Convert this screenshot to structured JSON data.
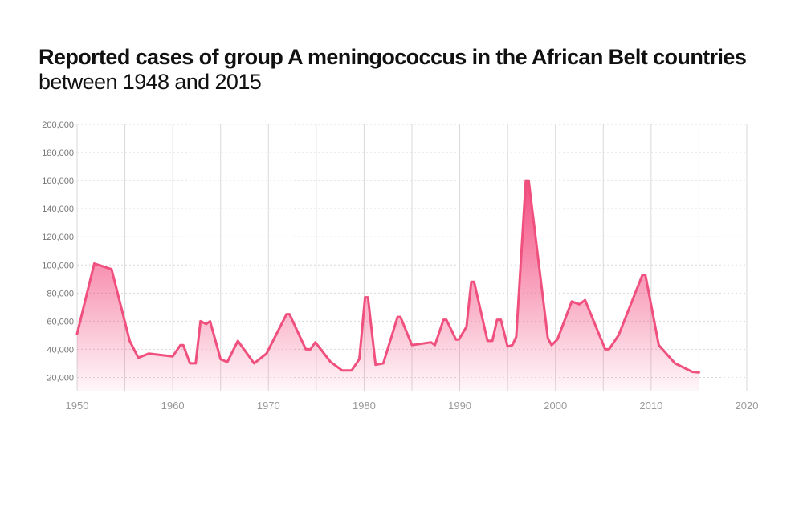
{
  "title": "Reported cases of group A meningococcus in the African Belt countries",
  "subtitle": "between 1948 and 2015",
  "chart_data": {
    "type": "area",
    "title": "Reported cases of group A meningococcus in the African Belt countries",
    "subtitle": "between 1948 and 2015",
    "xlim": [
      1950,
      2020
    ],
    "ylim": [
      10000,
      200000
    ],
    "x_ticks": [
      1950,
      1960,
      1970,
      1980,
      1990,
      2000,
      2010,
      2020
    ],
    "y_ticks": [
      20000,
      40000,
      60000,
      80000,
      100000,
      120000,
      140000,
      160000,
      180000,
      200000
    ],
    "x_tick_labels": [
      "1950",
      "1960",
      "1970",
      "1980",
      "1990",
      "2000",
      "2010",
      "2020"
    ],
    "y_tick_labels": [
      "20,000",
      "40,000",
      "60,000",
      "80,000",
      "100,000",
      "120,000",
      "140,000",
      "160,000",
      "180,000",
      "200,000"
    ],
    "grid": true,
    "colors": {
      "line": "#f0507e",
      "fill_top": "#f2437a",
      "grid": "#d9d9d9"
    },
    "series": [
      {
        "x": [
          1950,
          1951.8,
          1953.6,
          1955.5,
          1956.4,
          1957.5,
          1960,
          1960.8,
          1961.1,
          1961.8,
          1962.4,
          1962.9,
          1963.5,
          1963.9,
          1965,
          1965.7,
          1966.8,
          1968.5,
          1969.8,
          1971.9,
          1972.2,
          1973.9,
          1974.4,
          1974.9,
          1976.5,
          1977.7,
          1978.7,
          1979.5,
          1980.1,
          1980.4,
          1981.2,
          1982,
          1983.5,
          1983.8,
          1985,
          1987,
          1987.4,
          1988.3,
          1988.6,
          1989.6,
          1989.9,
          1990.7,
          1991.2,
          1991.5,
          1992.9,
          1993.4,
          1993.9,
          1994.3,
          1995,
          1995.5,
          1995.9,
          1996.9,
          1997.2,
          1999.2,
          1999.6,
          2000.2,
          2001.7,
          2002.5,
          2003.1,
          2005.2,
          2005.6,
          2006.6,
          2009.1,
          2009.4,
          2010.8,
          2012.5,
          2014.3,
          2015
        ],
        "values": [
          51000,
          101000,
          97000,
          46000,
          34000,
          37000,
          35000,
          43000,
          43000,
          30000,
          30000,
          60000,
          58000,
          60000,
          33000,
          31000,
          46000,
          30000,
          37000,
          65000,
          65000,
          40000,
          40000,
          45000,
          31000,
          25000,
          25000,
          33000,
          77000,
          77000,
          29000,
          30000,
          63000,
          63000,
          43000,
          45000,
          43000,
          61000,
          61000,
          47000,
          47000,
          56000,
          88000,
          88000,
          46000,
          46000,
          61000,
          61000,
          42000,
          43000,
          49000,
          160000,
          160000,
          48000,
          43000,
          47000,
          74000,
          72000,
          75000,
          40000,
          40000,
          50000,
          93000,
          93000,
          43000,
          30000,
          24000,
          23500
        ]
      }
    ]
  }
}
